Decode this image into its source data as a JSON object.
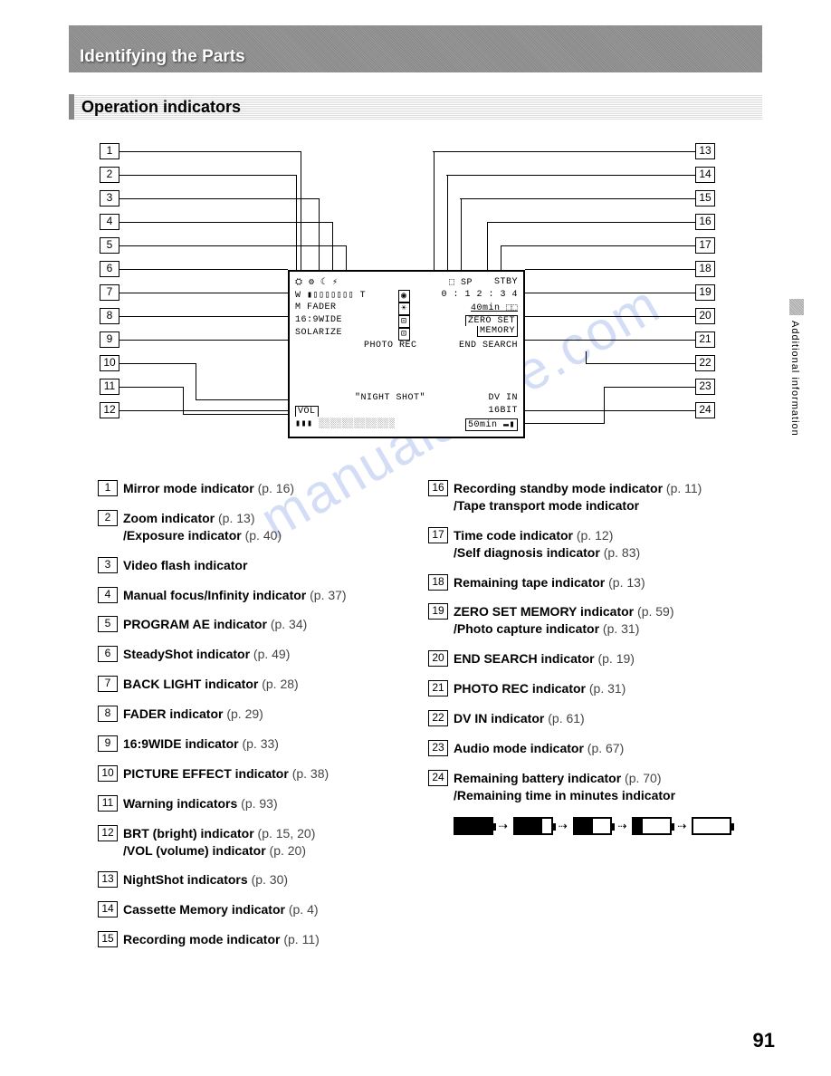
{
  "header": {
    "title": "Identifying the Parts"
  },
  "subheader": {
    "title": "Operation indicators"
  },
  "side_tab": "Additional information",
  "page_number": "91",
  "watermark": "manualshive.com",
  "diagram": {
    "left_callouts": [
      "1",
      "2",
      "3",
      "4",
      "5",
      "6",
      "7",
      "8",
      "9",
      "10",
      "11",
      "12"
    ],
    "right_callouts": [
      "13",
      "14",
      "15",
      "16",
      "17",
      "18",
      "19",
      "20",
      "21",
      "22",
      "23",
      "24"
    ],
    "lcd": {
      "row1_left": "⛭ ⚙ ☾ ⚡",
      "row1_right_a": "⬚ SP",
      "row1_right_b": "STBY",
      "row2_left": "W ▮▯▯▯▯▯▯▯ T",
      "row2_center": "◉",
      "row2_right": "0 : 1 2 : 3 4",
      "row3_left": "M FADER",
      "row3_center": "☀",
      "row3_right": "40min  ⬚⬚",
      "row4_left": "16:9WIDE",
      "row4_center": "⊡",
      "row4_right": "ZERO SET",
      "row5_left": "SOLARIZE",
      "row5_center": "⊡",
      "row5_right": "MEMORY",
      "row6_left": "",
      "row6_center": "PHOTO REC",
      "row6_right": "END SEARCH",
      "row7_center": "\"NIGHT SHOT\"",
      "row7_right": "DV IN",
      "row8_left": "VOL",
      "row8_right": "16BIT",
      "row9_left": "▮▮▮ ░░░░░░░░░░░░░",
      "row9_right": "50min  ▬▮"
    }
  },
  "left_items": [
    {
      "n": "1",
      "bold": "Mirror mode indicator",
      "ref": "(p. 16)"
    },
    {
      "n": "2",
      "bold": "Zoom indicator",
      "ref": "(p. 13) ",
      "bold2": "/Exposure indicator",
      "ref2": "(p. 40)"
    },
    {
      "n": "3",
      "bold": "Video flash indicator",
      "ref": ""
    },
    {
      "n": "4",
      "bold": "Manual focus/Infinity indicator",
      "ref": "(p. 37)"
    },
    {
      "n": "5",
      "bold": "PROGRAM AE indicator",
      "ref": "(p. 34)"
    },
    {
      "n": "6",
      "bold": "SteadyShot indicator",
      "ref": "(p. 49)"
    },
    {
      "n": "7",
      "bold": "BACK LIGHT indicator",
      "ref": "(p. 28)"
    },
    {
      "n": "8",
      "bold": "FADER indicator",
      "ref": "(p. 29)"
    },
    {
      "n": "9",
      "bold": "16:9WIDE indicator",
      "ref": "(p. 33)"
    },
    {
      "n": "10",
      "bold": "PICTURE EFFECT indicator",
      "ref": "(p. 38)"
    },
    {
      "n": "11",
      "bold": "Warning indicators",
      "ref": "(p. 93)"
    },
    {
      "n": "12",
      "bold": "BRT (bright) indicator",
      "ref": "(p. 15, 20) ",
      "bold2": "/VOL (volume) indicator",
      "ref2": "(p. 20)"
    },
    {
      "n": "13",
      "bold": "NightShot indicators",
      "ref": "(p. 30)"
    },
    {
      "n": "14",
      "bold": "Cassette Memory indicator",
      "ref": "(p. 4)"
    },
    {
      "n": "15",
      "bold": "Recording mode indicator",
      "ref": "(p. 11)"
    }
  ],
  "right_items": [
    {
      "n": "16",
      "bold": "Recording standby mode indicator",
      "ref": "(p. 11) ",
      "bold2": "/Tape transport mode indicator"
    },
    {
      "n": "17",
      "bold": "Time code indicator",
      "ref": "(p. 12) ",
      "bold2": "/Self diagnosis indicator",
      "ref2": "(p. 83)"
    },
    {
      "n": "18",
      "bold": "Remaining tape indicator",
      "ref": "(p. 13)"
    },
    {
      "n": "19",
      "bold": "ZERO SET MEMORY indicator",
      "ref": "(p. 59) ",
      "bold2": "/Photo capture indicator",
      "ref2": "(p. 31)"
    },
    {
      "n": "20",
      "bold": "END SEARCH indicator",
      "ref": "(p. 19)"
    },
    {
      "n": "21",
      "bold": "PHOTO REC indicator",
      "ref": "(p. 31)"
    },
    {
      "n": "22",
      "bold": "DV IN indicator",
      "ref": "(p. 61)"
    },
    {
      "n": "23",
      "bold": "Audio mode indicator",
      "ref": "(p. 67)"
    },
    {
      "n": "24",
      "bold": "Remaining battery indicator",
      "ref": "(p. 70) ",
      "bold2": "/Remaining time in minutes indicator"
    }
  ],
  "battery_levels": [
    100,
    75,
    50,
    25,
    0
  ]
}
